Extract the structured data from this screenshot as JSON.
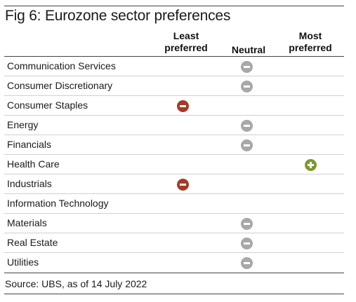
{
  "title": "Fig 6: Eurozone sector preferences",
  "columns": {
    "least": "Least preferred",
    "neutral": "Neutral",
    "most": "Most preferred"
  },
  "colors": {
    "least": "#a63a25",
    "neutral": "#a8a8a8",
    "most": "#7c9a2a"
  },
  "rows": [
    {
      "label": "Communication Services",
      "preference": "neutral"
    },
    {
      "label": "Consumer Discretionary",
      "preference": "neutral"
    },
    {
      "label": "Consumer Staples",
      "preference": "least"
    },
    {
      "label": "Energy",
      "preference": "neutral"
    },
    {
      "label": "Financials",
      "preference": "neutral"
    },
    {
      "label": "Health Care",
      "preference": "most"
    },
    {
      "label": "Industrials",
      "preference": "least"
    },
    {
      "label": "Information Technology",
      "preference": "none"
    },
    {
      "label": "Materials",
      "preference": "neutral"
    },
    {
      "label": "Real Estate",
      "preference": "neutral"
    },
    {
      "label": "Utilities",
      "preference": "neutral"
    }
  ],
  "source": "Source: UBS, as of 14 July 2022"
}
